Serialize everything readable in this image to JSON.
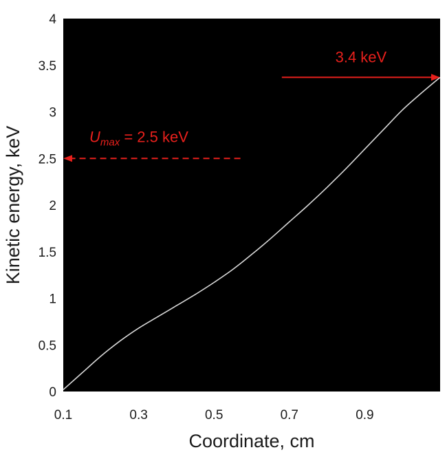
{
  "chart_data": {
    "type": "line",
    "title": "",
    "xlabel": "Coordinate, cm",
    "ylabel": "Kinetic energy, keV",
    "xlim": [
      0.1,
      1.1
    ],
    "ylim": [
      0,
      4
    ],
    "xticks": [
      0.1,
      0.3,
      0.5,
      0.7,
      0.9
    ],
    "xtick_labels": [
      "0.1",
      "0.3",
      "0.5",
      "0.7",
      "0.9"
    ],
    "yticks": [
      0,
      0.5,
      1,
      1.5,
      2,
      2.5,
      3,
      3.5,
      4
    ],
    "ytick_labels": [
      "0",
      "0.5",
      "1",
      "1.5",
      "2",
      "2.5",
      "3",
      "3.5",
      "4"
    ],
    "grid": false,
    "background_color": "#000000",
    "series": [
      {
        "color": "#d9d9d9",
        "x": [
          0.1,
          0.15,
          0.2,
          0.25,
          0.3,
          0.35,
          0.4,
          0.45,
          0.5,
          0.55,
          0.6,
          0.65,
          0.7,
          0.75,
          0.8,
          0.85,
          0.9,
          0.95,
          1.0,
          1.05,
          1.1
        ],
        "y": [
          0.02,
          0.2,
          0.38,
          0.54,
          0.68,
          0.8,
          0.92,
          1.04,
          1.17,
          1.31,
          1.47,
          1.64,
          1.82,
          2.0,
          2.19,
          2.39,
          2.6,
          2.81,
          3.02,
          3.2,
          3.37
        ]
      }
    ],
    "annotations": [
      {
        "id": "umax",
        "symbol": "U",
        "subscript": "max",
        "text": " = 2.5 keV",
        "y": 2.5,
        "x_from": 0.57,
        "x_to": 0.1,
        "style": "dashed",
        "color": "#e8201c"
      },
      {
        "id": "final",
        "text": "3.4 keV",
        "y": 3.37,
        "x_from": 0.68,
        "x_to": 1.1,
        "style": "solid",
        "color": "#e8201c"
      }
    ]
  }
}
